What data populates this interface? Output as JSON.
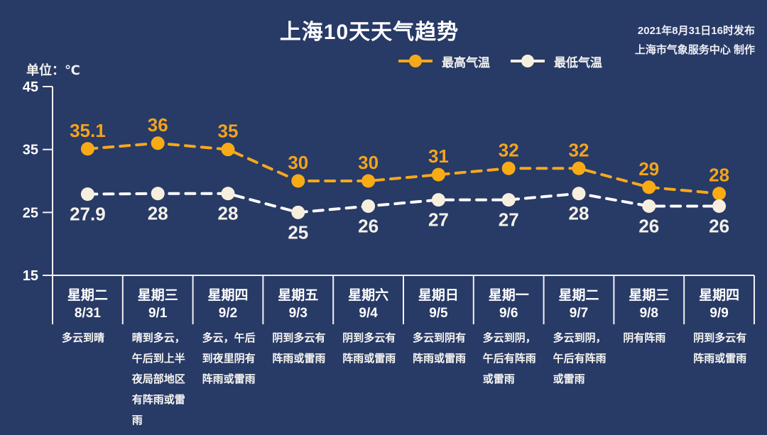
{
  "header": {
    "title": "上海10天天气趋势",
    "publish_line1": "2021年8月31日16时发布",
    "publish_line2": "上海市气象服务中心 制作"
  },
  "legend": {
    "max_label": "最高气温",
    "min_label": "最低气温"
  },
  "chart_data": {
    "type": "line",
    "title": "上海10天天气趋势",
    "unit_label": "单位：℃",
    "ylabel": "℃",
    "ylim": [
      15,
      45
    ],
    "yticks": [
      45,
      35,
      25,
      15
    ],
    "grid": false,
    "legend_position": "top",
    "line_style": "dashed",
    "categories": [
      {
        "weekday": "星期二",
        "date": "8/31",
        "weather": "多云到晴"
      },
      {
        "weekday": "星期三",
        "date": "9/1",
        "weather": "晴到多云，午后到上半夜局部地区有阵雨或雷雨"
      },
      {
        "weekday": "星期四",
        "date": "9/2",
        "weather": "多云，午后到夜里阴有阵雨或雷雨"
      },
      {
        "weekday": "星期五",
        "date": "9/3",
        "weather": "阴到多云有阵雨或雷雨"
      },
      {
        "weekday": "星期六",
        "date": "9/4",
        "weather": "阴到多云有阵雨或雷雨"
      },
      {
        "weekday": "星期日",
        "date": "9/5",
        "weather": "多云到阴有阵雨或雷雨"
      },
      {
        "weekday": "星期一",
        "date": "9/6",
        "weather": "多云到阴，午后有阵雨或雷雨"
      },
      {
        "weekday": "星期二",
        "date": "9/7",
        "weather": "多云到阴，午后有阵雨或雷雨"
      },
      {
        "weekday": "星期三",
        "date": "9/8",
        "weather": "阴有阵雨"
      },
      {
        "weekday": "星期四",
        "date": "9/9",
        "weather": "阴到多云有阵雨或雷雨"
      }
    ],
    "series": [
      {
        "name": "最高气温",
        "values": [
          35.1,
          36,
          35,
          30,
          30,
          31,
          32,
          32,
          29,
          28
        ],
        "color": "#f6a81c",
        "marker_color": "#f9ab15",
        "label_color": "#f3a41c",
        "label_position": "above"
      },
      {
        "name": "最低气温",
        "values": [
          27.9,
          28,
          28,
          25,
          26,
          27,
          27,
          28,
          26,
          26
        ],
        "color": "#ffffff",
        "marker_color": "#f7efde",
        "label_color": "#f5f2ea",
        "label_position": "below"
      }
    ]
  },
  "colors": {
    "background": "#283a66",
    "axis": "#f2f2f4",
    "max_series": "#f6a81c",
    "min_series": "#ffffff",
    "text": "#ffffff"
  }
}
